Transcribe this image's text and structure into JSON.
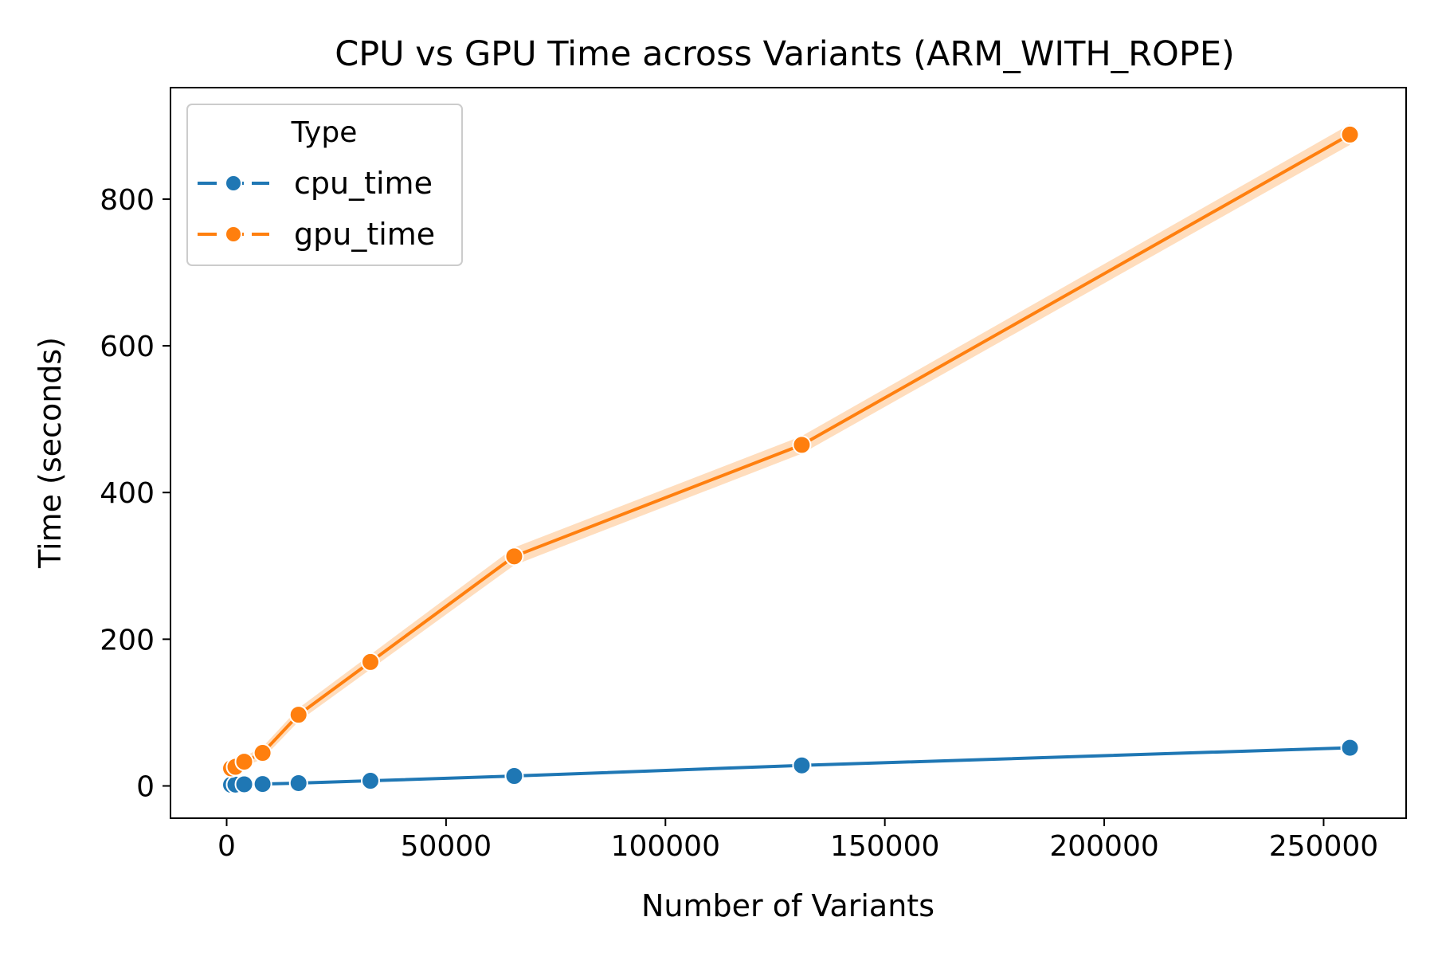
{
  "chart_data": {
    "type": "line",
    "title": "CPU vs GPU Time across Variants (ARM_WITH_ROPE)",
    "xlabel": "Number of Variants",
    "ylabel": "Time (seconds)",
    "xlim": [
      -12800,
      268800
    ],
    "ylim": [
      -44,
      952
    ],
    "xticks": [
      0,
      50000,
      100000,
      150000,
      200000,
      250000
    ],
    "yticks": [
      0,
      200,
      400,
      600,
      800
    ],
    "grid": false,
    "legend": {
      "title": "Type",
      "position": "top-left"
    },
    "x": [
      1000,
      2000,
      4000,
      8192,
      16384,
      32768,
      65536,
      131072,
      256000
    ],
    "series": [
      {
        "name": "cpu_time",
        "color": "#1f77b4",
        "values": [
          1.5,
          1.8,
          2.2,
          2.6,
          3.8,
          7.0,
          13.5,
          28.0,
          52.0
        ],
        "ci_halfwidth": [
          0,
          0,
          0,
          0,
          0,
          0,
          0,
          0,
          0
        ]
      },
      {
        "name": "gpu_time",
        "color": "#ff7f0e",
        "band_color": "#ffd4ad",
        "values": [
          24,
          26,
          33,
          45,
          97,
          169,
          313,
          465,
          888
        ],
        "ci_halfwidth": [
          6,
          6,
          7,
          8,
          9,
          10,
          12,
          12,
          14
        ]
      }
    ]
  }
}
